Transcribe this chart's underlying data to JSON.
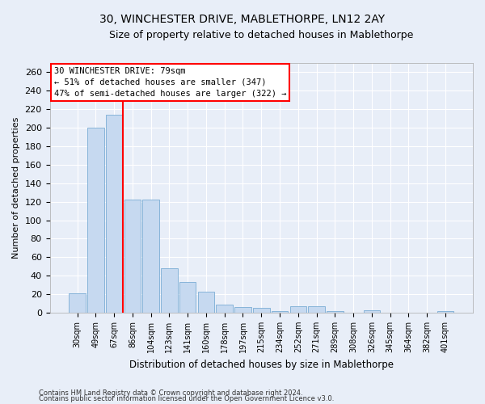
{
  "title": "30, WINCHESTER DRIVE, MABLETHORPE, LN12 2AY",
  "subtitle": "Size of property relative to detached houses in Mablethorpe",
  "xlabel": "Distribution of detached houses by size in Mablethorpe",
  "ylabel": "Number of detached properties",
  "categories": [
    "30sqm",
    "49sqm",
    "67sqm",
    "86sqm",
    "104sqm",
    "123sqm",
    "141sqm",
    "160sqm",
    "178sqm",
    "197sqm",
    "215sqm",
    "234sqm",
    "252sqm",
    "271sqm",
    "289sqm",
    "308sqm",
    "326sqm",
    "345sqm",
    "364sqm",
    "382sqm",
    "401sqm"
  ],
  "values": [
    21,
    200,
    214,
    122,
    122,
    48,
    33,
    23,
    9,
    6,
    5,
    2,
    7,
    7,
    2,
    0,
    3,
    0,
    0,
    0,
    2
  ],
  "bar_color": "#c6d9f0",
  "bar_edgecolor": "#7aadd4",
  "vline_color": "red",
  "vline_pos": 2.5,
  "ylim": [
    0,
    270
  ],
  "yticks": [
    0,
    20,
    40,
    60,
    80,
    100,
    120,
    140,
    160,
    180,
    200,
    220,
    240,
    260
  ],
  "annotation_text": "30 WINCHESTER DRIVE: 79sqm\n← 51% of detached houses are smaller (347)\n47% of semi-detached houses are larger (322) →",
  "annotation_box_color": "white",
  "annotation_box_edgecolor": "red",
  "footer1": "Contains HM Land Registry data © Crown copyright and database right 2024.",
  "footer2": "Contains public sector information licensed under the Open Government Licence v3.0.",
  "background_color": "#e8eef8",
  "plot_bg_color": "#e8eef8",
  "grid_color": "white",
  "title_fontsize": 10,
  "subtitle_fontsize": 9
}
